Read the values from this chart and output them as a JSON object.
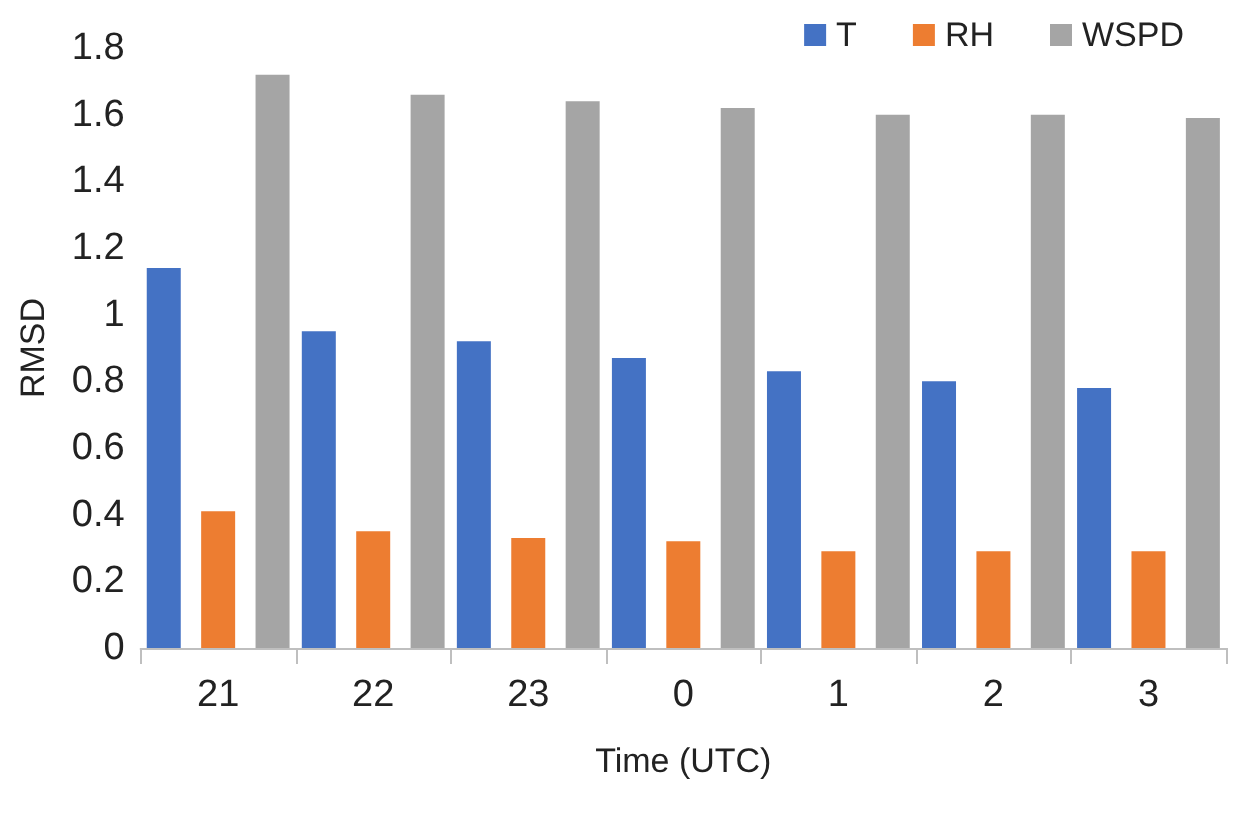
{
  "chart_data": {
    "type": "bar",
    "xlabel": "Time (UTC)",
    "ylabel": "RMSD",
    "categories": [
      "21",
      "22",
      "23",
      "0",
      "1",
      "2",
      "3"
    ],
    "series": [
      {
        "name": "T",
        "color": "#4472c4",
        "values": [
          1.14,
          0.95,
          0.92,
          0.87,
          0.83,
          0.8,
          0.78
        ]
      },
      {
        "name": "RH",
        "color": "#ed7d31",
        "values": [
          0.41,
          0.35,
          0.33,
          0.32,
          0.29,
          0.29,
          0.29
        ]
      },
      {
        "name": "WSPD",
        "color": "#a5a5a5",
        "values": [
          1.72,
          1.66,
          1.64,
          1.62,
          1.6,
          1.6,
          1.59
        ]
      }
    ],
    "ylim": [
      0,
      1.8
    ],
    "yticks": [
      0,
      0.2,
      0.4,
      0.6,
      0.8,
      1,
      1.2,
      1.4,
      1.6,
      1.8
    ],
    "grid": false,
    "legend": "top right"
  }
}
